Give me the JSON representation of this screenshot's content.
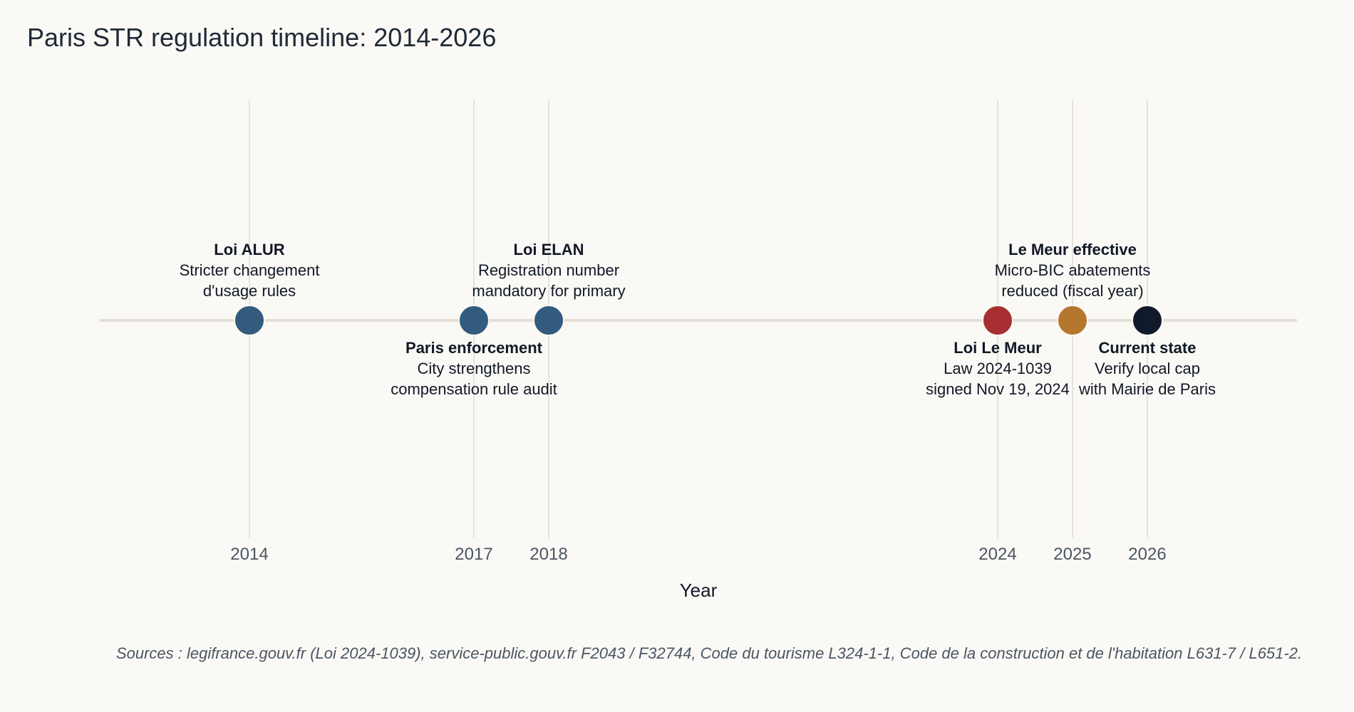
{
  "title": "Paris STR regulation timeline: 2014-2026",
  "sources": "Sources : legifrance.gouv.fr (Loi 2024-1039), service-public.gouv.fr F2043 / F32744, Code du tourisme L324-1-1, Code de la construction et de l'habitation L631-7 / L651-2.",
  "chart_data": {
    "type": "scatter",
    "title": "Paris STR regulation timeline: 2014-2026",
    "xlabel": "Year",
    "ylabel": "",
    "x_ticks": [
      2014,
      2017,
      2018,
      2024,
      2025,
      2026
    ],
    "xlim": [
      2012,
      2028
    ],
    "grid": "vertical at ticks",
    "events": [
      {
        "year": 2014,
        "title": "Loi ALUR",
        "lines": [
          "Stricter changement",
          "d'usage rules"
        ],
        "label_position": "above",
        "color": "#335b7e"
      },
      {
        "year": 2017,
        "title": "Paris enforcement",
        "lines": [
          "City strengthens",
          "compensation rule audit"
        ],
        "label_position": "below",
        "color": "#335b7e"
      },
      {
        "year": 2018,
        "title": "Loi ELAN",
        "lines": [
          "Registration number",
          "mandatory for primary"
        ],
        "label_position": "above",
        "color": "#335b7e"
      },
      {
        "year": 2024,
        "title": "Loi Le Meur",
        "lines": [
          "Law 2024-1039",
          "signed Nov 19, 2024"
        ],
        "label_position": "below",
        "color": "#a72f31"
      },
      {
        "year": 2025,
        "title": "Le Meur effective",
        "lines": [
          "Micro-BIC abatements",
          "reduced (fiscal year)"
        ],
        "label_position": "above",
        "color": "#b5762e"
      },
      {
        "year": 2026,
        "title": "Current state",
        "lines": [
          "Verify local cap",
          "with Mairie de Paris"
        ],
        "label_position": "below",
        "color": "#111a2d"
      }
    ],
    "colors": {
      "baseline": "#e2e0d6",
      "gridline": "#dedcd5",
      "background": "#faf9f5"
    }
  }
}
